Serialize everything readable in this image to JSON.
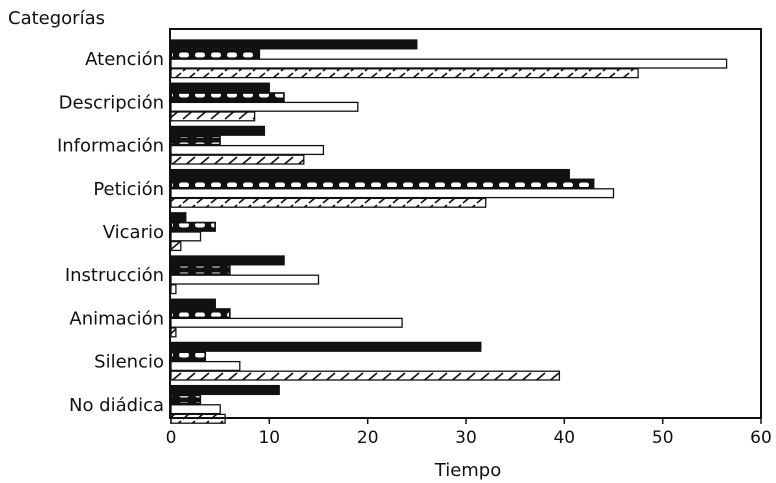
{
  "chart_data": {
    "type": "bar",
    "orientation": "horizontal",
    "title": "",
    "ylabel": "Categorías",
    "xlabel": "Tiempo",
    "xlim": [
      0,
      60
    ],
    "xticks": [
      0,
      10,
      20,
      30,
      40,
      50,
      60
    ],
    "grid": false,
    "legend": "none",
    "categories": [
      "Atención",
      "Descripción",
      "Información",
      "Petición",
      "Vicario",
      "Instrucción",
      "Animación",
      "Silencio",
      "No diádica"
    ],
    "series": [
      {
        "fill": "solid",
        "color": "#111111",
        "values": [
          25,
          10,
          9.5,
          40.5,
          1.5,
          11.5,
          4.5,
          31.5,
          11
        ]
      },
      {
        "fill": "dashed",
        "color": "#111111",
        "values": [
          9,
          11.5,
          5,
          43,
          4.5,
          6,
          6,
          3.5,
          3
        ]
      },
      {
        "fill": "open",
        "color": "#111111",
        "values": [
          56.5,
          19,
          15.5,
          45,
          3,
          15,
          23.5,
          7,
          5
        ]
      },
      {
        "fill": "hatched",
        "color": "#111111",
        "values": [
          47.5,
          8.5,
          13.5,
          32,
          1,
          0.5,
          0.5,
          39.5,
          5.5
        ]
      }
    ]
  }
}
